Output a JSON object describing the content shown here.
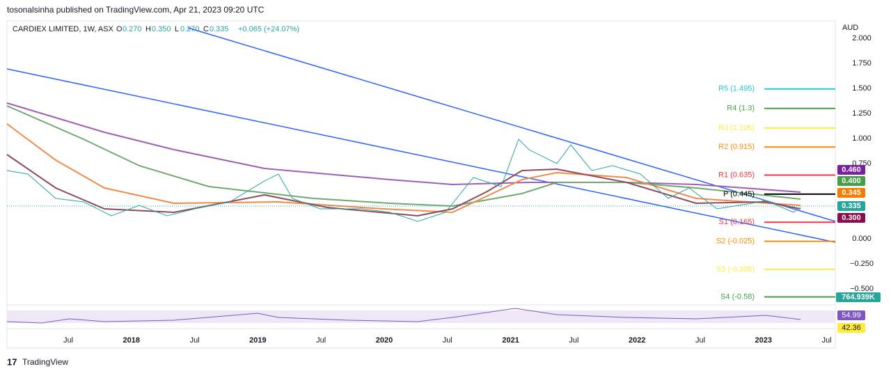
{
  "header": {
    "published": "tosonalsinha published on TradingView.com, Apr 21, 2023 09:20 UTC"
  },
  "legend": {
    "symbol": "CARDIEX LIMITED, 1W, ASX",
    "o": "O",
    "open": "0.270",
    "h": "H",
    "high": "0.350",
    "l": "L",
    "low": "0.270",
    "c": "C",
    "close": "0.335",
    "change": "+0.065 (+24.07%)"
  },
  "price_axis": {
    "unit": "AUD",
    "ticks": [
      {
        "value": 2,
        "label": "2.000"
      },
      {
        "value": 1.75,
        "label": "1.750"
      },
      {
        "value": 1.5,
        "label": "1.500"
      },
      {
        "value": 1.25,
        "label": "1.250"
      },
      {
        "value": 1,
        "label": "1.000"
      },
      {
        "value": 0.75,
        "label": "0.750"
      },
      {
        "value": 0,
        "label": "0.000"
      },
      {
        "value": -0.25,
        "label": "−0.250"
      },
      {
        "value": -0.5,
        "label": "−0.500"
      }
    ]
  },
  "pivots": [
    {
      "label": "R5 (1.495)",
      "value": 1.495,
      "color": "#26c6da"
    },
    {
      "label": "R4 (1.3)",
      "value": 1.3,
      "color": "#43a047"
    },
    {
      "label": "R3 (1.105)",
      "value": 1.105,
      "color": "#ffeb3b"
    },
    {
      "label": "R2 (0.915)",
      "value": 0.915,
      "color": "#fb8c00"
    },
    {
      "label": "R1 (0.635)",
      "value": 0.635,
      "color": "#f23645"
    },
    {
      "label": "P (0.445)",
      "value": 0.445,
      "color": "#000000"
    },
    {
      "label": "S1 (0.165)",
      "value": 0.165,
      "color": "#f23645"
    },
    {
      "label": "S2 (-0.025)",
      "value": -0.025,
      "color": "#fb8c00"
    },
    {
      "label": "S3 (-0.305)",
      "value": -0.305,
      "color": "#ffeb3b"
    },
    {
      "label": "S4 (-0.58)",
      "value": -0.58,
      "color": "#43a047"
    }
  ],
  "badges": [
    {
      "label": "0.460",
      "color": "#7b1fa2"
    },
    {
      "label": "0.400",
      "color": "#43a047"
    },
    {
      "label": "0.345",
      "color": "#f57c00"
    },
    {
      "label": "0.335",
      "color": "#26a69a"
    },
    {
      "label": "0.300",
      "color": "#880e4f"
    }
  ],
  "volume_badge": "764.939K",
  "rsi_badges": [
    "54.99",
    "42.36"
  ],
  "time_axis": [
    "Jul",
    "2018",
    "Jul",
    "2019",
    "Jul",
    "2020",
    "Jul",
    "2021",
    "Jul",
    "2022",
    "Jul",
    "2023",
    "Jul"
  ],
  "footer": "TradingView"
}
